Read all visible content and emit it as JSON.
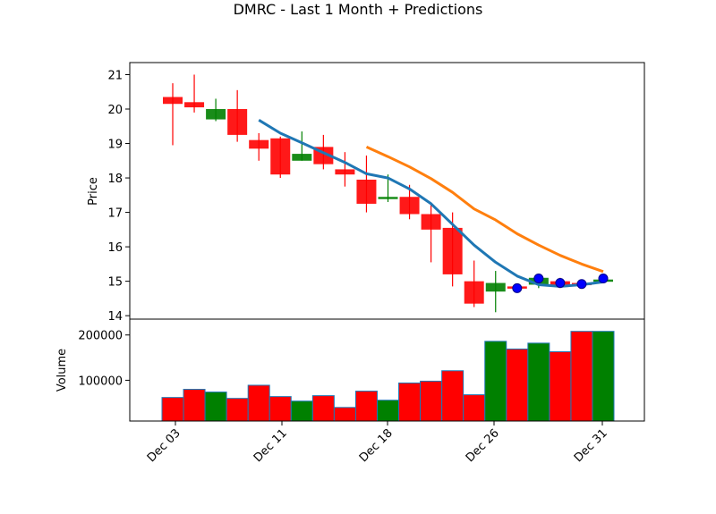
{
  "chart_data": {
    "type": "candlestick",
    "title": "DMRC - Last 1 Month + Predictions",
    "x_ticks": [
      "Dec 03",
      "Dec 11",
      "Dec 18",
      "Dec 26",
      "Dec 31"
    ],
    "price_axis": {
      "label": "Price",
      "ylim": [
        13.9,
        21.35
      ],
      "ticks": [
        14,
        15,
        16,
        17,
        18,
        19,
        20,
        21
      ]
    },
    "volume_axis": {
      "label": "Volume",
      "ylim": [
        10000,
        235000
      ],
      "ticks": [
        100000,
        200000
      ]
    },
    "colors": {
      "up": "#008000",
      "down": "#ff0000",
      "short_ma": "#1f77b4",
      "long_ma": "#ff7f0e",
      "prediction": "#0000ff"
    },
    "candles": [
      {
        "open": 20.35,
        "high": 20.75,
        "low": 18.95,
        "close": 20.15,
        "volume": 62000
      },
      {
        "open": 20.2,
        "high": 21.0,
        "low": 19.9,
        "close": 20.05,
        "volume": 80000
      },
      {
        "open": 19.7,
        "high": 20.3,
        "low": 19.65,
        "close": 20.0,
        "volume": 74000
      },
      {
        "open": 20.0,
        "high": 20.55,
        "low": 19.05,
        "close": 19.25,
        "volume": 60000
      },
      {
        "open": 19.1,
        "high": 19.3,
        "low": 18.5,
        "close": 18.85,
        "volume": 89000
      },
      {
        "open": 19.15,
        "high": 19.2,
        "low": 18.0,
        "close": 18.1,
        "volume": 64000
      },
      {
        "open": 18.5,
        "high": 19.35,
        "low": 18.5,
        "close": 18.7,
        "volume": 54000
      },
      {
        "open": 18.9,
        "high": 19.25,
        "low": 18.25,
        "close": 18.4,
        "volume": 66000
      },
      {
        "open": 18.25,
        "high": 18.75,
        "low": 17.75,
        "close": 18.1,
        "volume": 40000
      },
      {
        "open": 17.95,
        "high": 18.65,
        "low": 17.0,
        "close": 17.25,
        "volume": 76000
      },
      {
        "open": 17.4,
        "high": 18.1,
        "low": 17.3,
        "close": 17.45,
        "volume": 56000
      },
      {
        "open": 17.45,
        "high": 17.8,
        "low": 16.8,
        "close": 16.95,
        "volume": 94000
      },
      {
        "open": 16.95,
        "high": 17.25,
        "low": 15.55,
        "close": 16.5,
        "volume": 98000
      },
      {
        "open": 16.55,
        "high": 17.0,
        "low": 14.85,
        "close": 15.2,
        "volume": 121000
      },
      {
        "open": 15.0,
        "high": 15.6,
        "low": 14.25,
        "close": 14.35,
        "volume": 68000
      },
      {
        "open": 14.7,
        "high": 15.3,
        "low": 14.1,
        "close": 14.95,
        "volume": 186000
      },
      {
        "open": 14.85,
        "high": 14.9,
        "low": 14.7,
        "close": 14.8,
        "volume": 169000
      },
      {
        "open": 14.9,
        "high": 15.1,
        "low": 14.8,
        "close": 15.1,
        "volume": 182000
      },
      {
        "open": 15.0,
        "high": 15.1,
        "low": 14.8,
        "close": 14.9,
        "volume": 163000
      },
      {
        "open": 14.95,
        "high": 15.05,
        "low": 14.85,
        "close": 14.9,
        "volume": 208000
      },
      {
        "open": 15.0,
        "high": 15.05,
        "low": 14.95,
        "close": 15.05,
        "volume": 208000
      }
    ],
    "short_ma": [
      null,
      null,
      null,
      null,
      19.68,
      19.3,
      19.02,
      18.73,
      18.45,
      18.12,
      18.0,
      17.68,
      17.25,
      16.65,
      16.05,
      15.55,
      15.15,
      14.9,
      14.85,
      14.9,
      14.98
    ],
    "long_ma": [
      null,
      null,
      null,
      null,
      null,
      null,
      null,
      null,
      null,
      18.9,
      18.62,
      18.32,
      17.98,
      17.58,
      17.1,
      16.78,
      16.38,
      16.05,
      15.75,
      15.5,
      15.28
    ],
    "predictions": [
      null,
      null,
      null,
      null,
      null,
      null,
      null,
      null,
      null,
      null,
      null,
      null,
      null,
      null,
      null,
      null,
      14.8,
      15.08,
      14.95,
      14.92,
      15.08
    ]
  }
}
